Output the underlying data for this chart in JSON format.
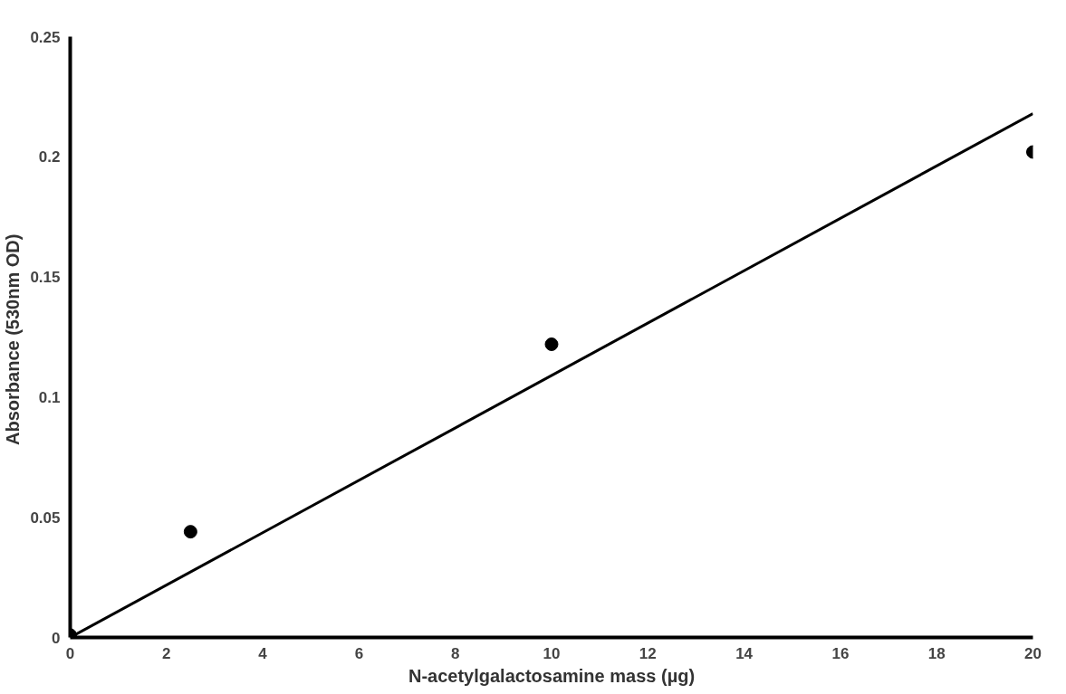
{
  "chart_data": {
    "type": "scatter",
    "xlabel": "N-acetylgalactosamine mass (µg)",
    "ylabel": "Absorbance  (530nm OD)",
    "xlim": [
      0,
      20
    ],
    "ylim": [
      0,
      0.25
    ],
    "xticks": [
      0,
      2,
      4,
      6,
      8,
      10,
      12,
      14,
      16,
      18,
      20
    ],
    "yticks": [
      0,
      0.05,
      0.1,
      0.15,
      0.2,
      0.25
    ],
    "grid": false,
    "marker": "circle",
    "series": [
      {
        "color": "#000000",
        "x": [
          0,
          2.5,
          10,
          20
        ],
        "values": [
          0.001,
          0.044,
          0.122,
          0.202
        ]
      },
      {
        "type": "line",
        "color": "#000000",
        "line_style": "solid",
        "marker": "none",
        "x": [
          0,
          20
        ],
        "values": [
          0,
          0.218
        ]
      }
    ]
  }
}
